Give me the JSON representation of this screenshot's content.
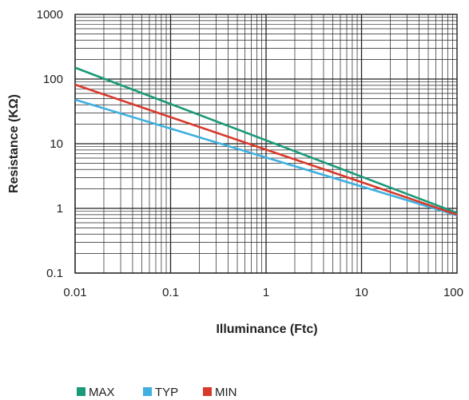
{
  "chart_data": {
    "type": "line",
    "title": "",
    "xlabel": "Illuminance (Ftc)",
    "ylabel": "Resistance (KΩ)",
    "x_scale": "log",
    "y_scale": "log",
    "xlim": [
      0.01,
      100
    ],
    "ylim": [
      0.1,
      1000
    ],
    "x_ticks": [
      {
        "value": 0.01,
        "label": "0.01"
      },
      {
        "value": 0.1,
        "label": "0.1"
      },
      {
        "value": 1,
        "label": "1"
      },
      {
        "value": 10,
        "label": "10"
      },
      {
        "value": 100,
        "label": "100"
      }
    ],
    "y_ticks": [
      {
        "value": 0.1,
        "label": "0.1"
      },
      {
        "value": 1,
        "label": "1"
      },
      {
        "value": 10,
        "label": "10"
      },
      {
        "value": 100,
        "label": "100"
      },
      {
        "value": 1000,
        "label": "1000"
      }
    ],
    "grid": true,
    "legend_position": "bottom-left",
    "series": [
      {
        "name": "MAX",
        "color": "#1a9a78",
        "x": [
          0.01,
          100
        ],
        "y": [
          150,
          0.85
        ]
      },
      {
        "name": "TYP",
        "color": "#3fb0e0",
        "x": [
          0.01,
          100
        ],
        "y": [
          48,
          0.78
        ]
      },
      {
        "name": "MIN",
        "color": "#d9392b",
        "x": [
          0.01,
          100
        ],
        "y": [
          82,
          0.8
        ]
      }
    ]
  }
}
